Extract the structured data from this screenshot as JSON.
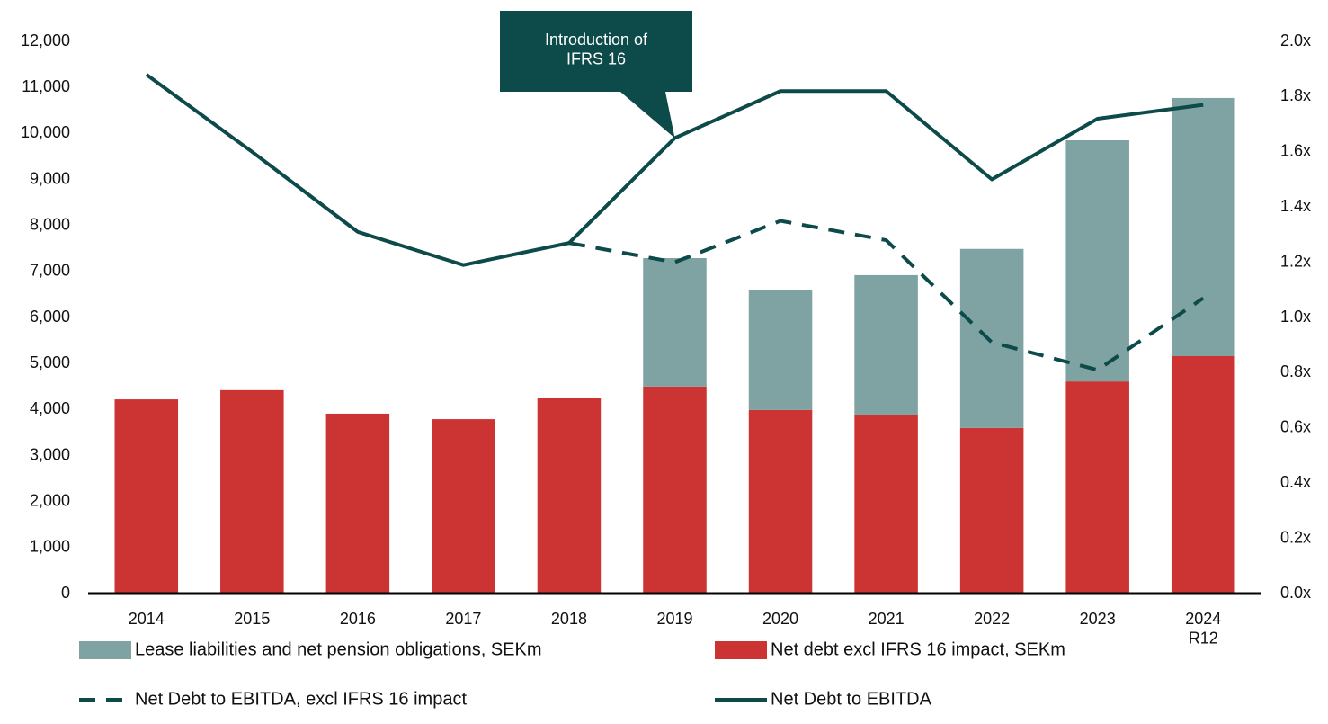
{
  "chart_data": {
    "type": "bar",
    "categories": [
      "2014",
      "2015",
      "2016",
      "2017",
      "2018",
      "2019",
      "2020",
      "2021",
      "2022",
      "2023",
      "2024\nR12"
    ],
    "series": [
      {
        "name": "Lease liabilities and net pension obligations, SEKm",
        "type": "bar",
        "color": "#7fa2a2",
        "values": [
          null,
          null,
          null,
          null,
          null,
          2790,
          2600,
          3030,
          3890,
          5240,
          5610
        ]
      },
      {
        "name": "Net debt excl IFRS 16 impact, SEKm",
        "type": "bar",
        "color": "#cc3333",
        "values": [
          4220,
          4420,
          3910,
          3790,
          4260,
          4500,
          3990,
          3890,
          3600,
          4610,
          5160
        ]
      },
      {
        "name": "Net Debt to EBITDA, excl IFRS 16 impact",
        "type": "line",
        "axis": "y2",
        "dash": true,
        "color": "#0d4a4a",
        "values": [
          null,
          null,
          null,
          null,
          1.27,
          1.2,
          1.35,
          1.28,
          0.91,
          0.81,
          1.07
        ]
      },
      {
        "name": "Net Debt to EBITDA",
        "type": "line",
        "axis": "y2",
        "dash": false,
        "color": "#0d4a4a",
        "values": [
          1.88,
          1.6,
          1.31,
          1.19,
          1.27,
          1.65,
          1.82,
          1.82,
          1.5,
          1.72,
          1.77
        ]
      }
    ],
    "ylim": [
      0,
      12000
    ],
    "yticks": [
      0,
      {
        "value": 1000,
        "label": "1,000"
      },
      {
        "value": 2000,
        "label": "2,000"
      },
      {
        "value": 3000,
        "label": "3,000"
      },
      {
        "value": 4000,
        "label": "4,000"
      },
      {
        "value": 5000,
        "label": "5,000"
      },
      {
        "value": 6000,
        "label": "6,000"
      },
      {
        "value": 7000,
        "label": "7,000"
      },
      {
        "value": 8000,
        "label": "8,000"
      },
      {
        "value": 9000,
        "label": "9,000"
      },
      {
        "value": 10000,
        "label": "10,000"
      },
      {
        "value": 11000,
        "label": "11,000"
      },
      {
        "value": 12000,
        "label": "12,000"
      }
    ],
    "y2lim": [
      0,
      2
    ],
    "y2ticks": [
      {
        "value": 0,
        "label": "0.0x"
      },
      {
        "value": 0.2,
        "label": "0.2x"
      },
      {
        "value": 0.4,
        "label": "0.4x"
      },
      {
        "value": 0.6,
        "label": "0.6x"
      },
      {
        "value": 0.8,
        "label": "0.8x"
      },
      {
        "value": 1,
        "label": "1.0x"
      },
      {
        "value": 1.2,
        "label": "1.2x"
      },
      {
        "value": 1.4,
        "label": "1.4x"
      },
      {
        "value": 1.6,
        "label": "1.6x"
      },
      {
        "value": 1.8,
        "label": "1.8x"
      },
      {
        "value": 2,
        "label": "2.0x"
      }
    ],
    "annotation": {
      "text": "Introduction of\nIFRS 16",
      "category": 5,
      "color": "#0d4a4a"
    }
  }
}
